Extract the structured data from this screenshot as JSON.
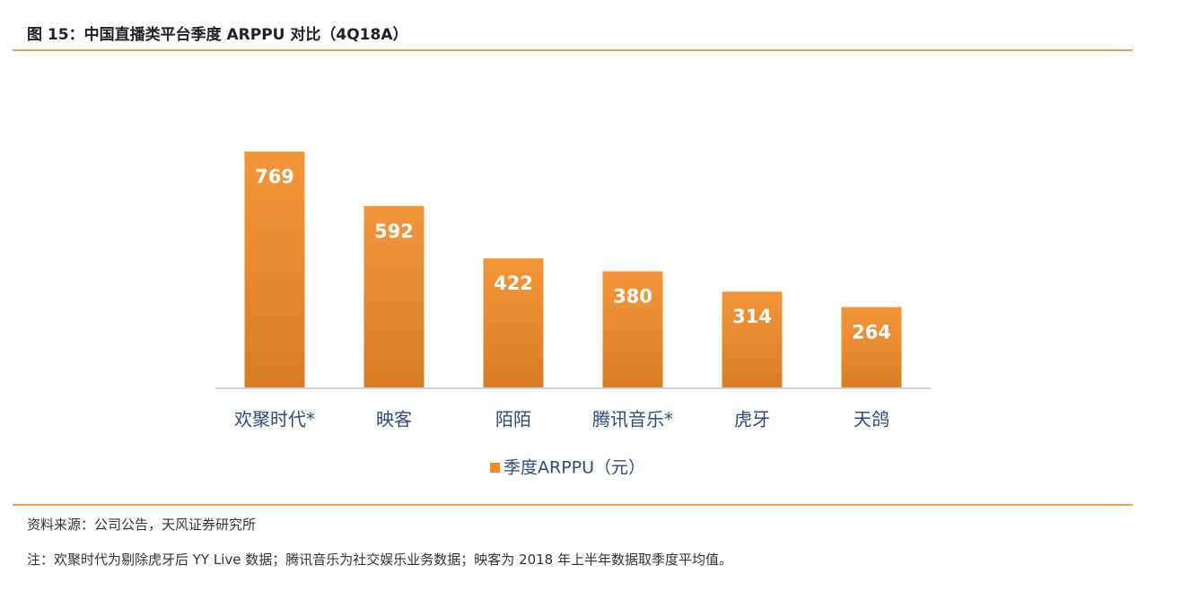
{
  "title": "图 15：中国直播类平台季度 ARPPU 对比（4Q18A）",
  "chart_data": {
    "type": "bar",
    "categories": [
      "欢聚时代*",
      "映客",
      "陌陌",
      "腾讯音乐*",
      "虎牙",
      "天鸽"
    ],
    "series": [
      {
        "name": "季度ARPPU（元）",
        "color": "#f28c28",
        "values": [
          769,
          592,
          422,
          380,
          314,
          264
        ]
      }
    ]
  },
  "source": "资料来源：公司公告，天风证券研究所",
  "note": "注：欢聚时代为剔除虎牙后 YY Live 数据；腾讯音乐为社交娱乐业务数据；映客为 2018 年上半年数据取季度平均值。"
}
